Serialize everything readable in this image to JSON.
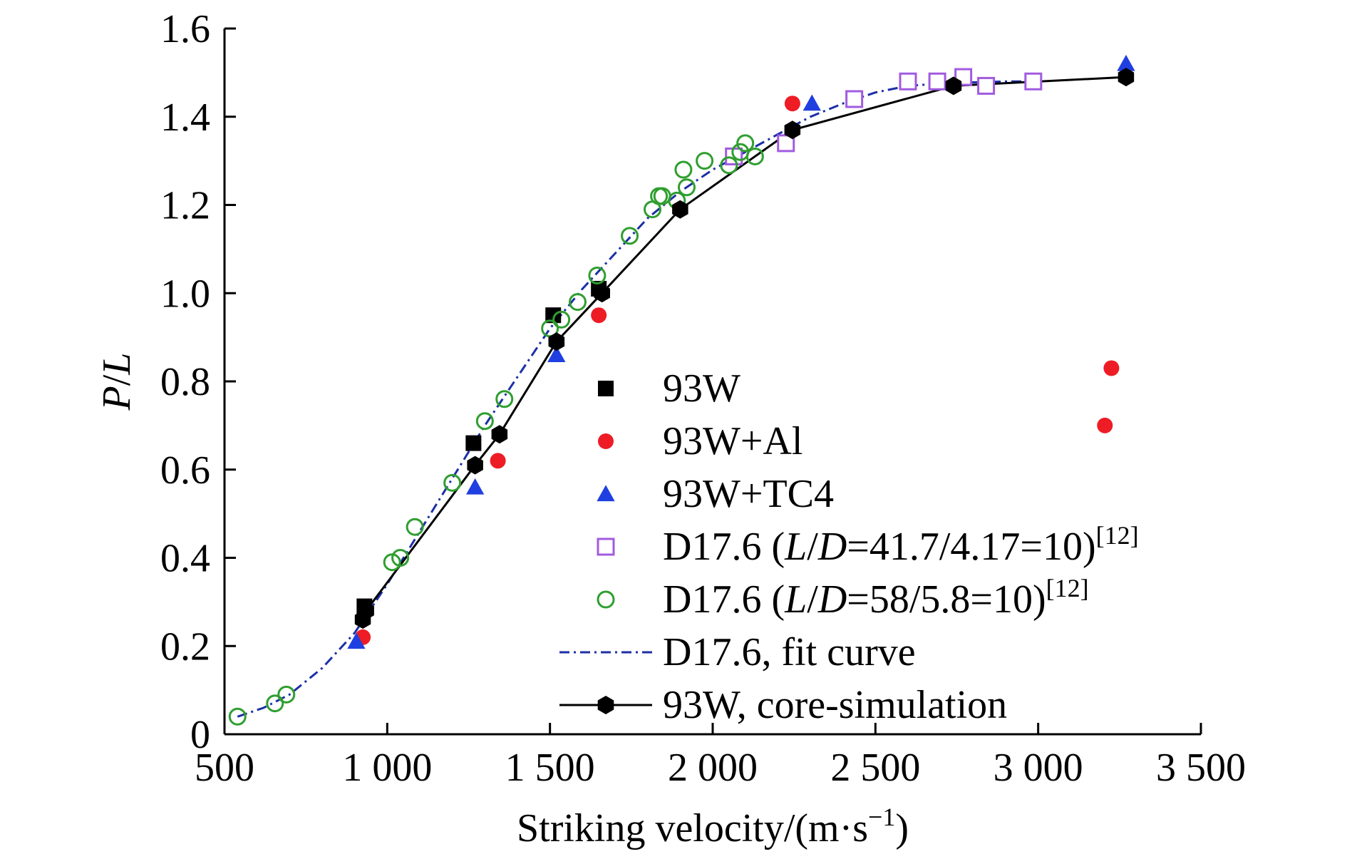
{
  "chart_data": {
    "type": "scatter",
    "xlabel": "Striking velocity/(m·s",
    "xlabel_sup": "−1",
    "xlabel_close": ")",
    "ylabel_p": "P",
    "ylabel_slash": "/",
    "ylabel_l": "L",
    "xlim": [
      500,
      3500
    ],
    "ylim": [
      0,
      1.6
    ],
    "xticks": [
      500,
      1000,
      1500,
      2000,
      2500,
      3000,
      3500
    ],
    "xtick_labels": [
      "500",
      "1 000",
      "1 500",
      "2 000",
      "2 500",
      "3 000",
      "3 500"
    ],
    "yticks": [
      0,
      0.2,
      0.4,
      0.6,
      0.8,
      1.0,
      1.2,
      1.4,
      1.6
    ],
    "ytick_labels": [
      "0",
      "0.2",
      "0.4",
      "0.6",
      "0.8",
      "1.0",
      "1.2",
      "1.4",
      "1.6"
    ],
    "grid": false,
    "legend_position": "center-right",
    "series": [
      {
        "name": "93W",
        "marker": "square",
        "filled": true,
        "color": "#000000",
        "points": [
          [
            930,
            0.29
          ],
          [
            1265,
            0.66
          ],
          [
            1510,
            0.95
          ],
          [
            1650,
            1.01
          ]
        ]
      },
      {
        "name": "93W+Al",
        "marker": "circle",
        "filled": true,
        "color": "#ee1c25",
        "points": [
          [
            925,
            0.22
          ],
          [
            1340,
            0.62
          ],
          [
            1650,
            0.95
          ],
          [
            2245,
            1.43
          ],
          [
            3205,
            0.7
          ],
          [
            3225,
            0.83
          ]
        ]
      },
      {
        "name": "93W+TC4",
        "marker": "triangle",
        "filled": true,
        "color": "#1f3fe0",
        "points": [
          [
            905,
            0.21
          ],
          [
            1270,
            0.56
          ],
          [
            1520,
            0.86
          ],
          [
            2305,
            1.43
          ],
          [
            3270,
            1.52
          ]
        ]
      },
      {
        "name_pre": "D17.6 (",
        "name_it1": "L",
        "name_mid": "/",
        "name_it2": "D",
        "name_post": "=41.7/4.17=10)",
        "name_sup": "[12]",
        "marker": "square",
        "filled": false,
        "color": "#a15be0",
        "points": [
          [
            2065,
            1.31
          ],
          [
            2225,
            1.34
          ],
          [
            2435,
            1.44
          ],
          [
            2600,
            1.48
          ],
          [
            2690,
            1.48
          ],
          [
            2770,
            1.49
          ],
          [
            2840,
            1.47
          ],
          [
            2985,
            1.48
          ]
        ]
      },
      {
        "name_pre": "D17.6 (",
        "name_it1": "L",
        "name_mid": "/",
        "name_it2": "D",
        "name_post": "=58/5.8=10)",
        "name_sup": "[12]",
        "marker": "circle",
        "filled": false,
        "color": "#2f9e2f",
        "points": [
          [
            540,
            0.04
          ],
          [
            655,
            0.07
          ],
          [
            690,
            0.09
          ],
          [
            1015,
            0.39
          ],
          [
            1040,
            0.4
          ],
          [
            1085,
            0.47
          ],
          [
            1200,
            0.57
          ],
          [
            1300,
            0.71
          ],
          [
            1360,
            0.76
          ],
          [
            1500,
            0.92
          ],
          [
            1535,
            0.94
          ],
          [
            1585,
            0.98
          ],
          [
            1645,
            1.04
          ],
          [
            1745,
            1.13
          ],
          [
            1815,
            1.19
          ],
          [
            1835,
            1.22
          ],
          [
            1845,
            1.22
          ],
          [
            1890,
            1.21
          ],
          [
            1910,
            1.28
          ],
          [
            1920,
            1.24
          ],
          [
            1975,
            1.3
          ],
          [
            2050,
            1.29
          ],
          [
            2085,
            1.32
          ],
          [
            2100,
            1.34
          ],
          [
            2130,
            1.31
          ]
        ]
      },
      {
        "name": "D17.6, fit curve",
        "marker": "none",
        "style": "dash-dot",
        "color": "#1c2fa6",
        "points": [
          [
            540,
            0.04
          ],
          [
            620,
            0.06
          ],
          [
            700,
            0.09
          ],
          [
            800,
            0.15
          ],
          [
            900,
            0.23
          ],
          [
            1000,
            0.34
          ],
          [
            1100,
            0.46
          ],
          [
            1200,
            0.58
          ],
          [
            1300,
            0.7
          ],
          [
            1400,
            0.81
          ],
          [
            1500,
            0.92
          ],
          [
            1600,
            1.01
          ],
          [
            1700,
            1.09
          ],
          [
            1800,
            1.17
          ],
          [
            1900,
            1.23
          ],
          [
            2000,
            1.28
          ],
          [
            2100,
            1.32
          ],
          [
            2200,
            1.36
          ],
          [
            2300,
            1.4
          ],
          [
            2400,
            1.43
          ],
          [
            2500,
            1.455
          ],
          [
            2600,
            1.47
          ],
          [
            2700,
            1.475
          ],
          [
            2800,
            1.478
          ],
          [
            2900,
            1.48
          ],
          [
            3000,
            1.48
          ]
        ]
      },
      {
        "name": "93W, core-simulation",
        "marker": "hexagon",
        "filled": true,
        "style": "solid",
        "color": "#000000",
        "points": [
          [
            925,
            0.26
          ],
          [
            935,
            0.28
          ],
          [
            1270,
            0.61
          ],
          [
            1345,
            0.68
          ],
          [
            1520,
            0.89
          ],
          [
            1660,
            1.0
          ],
          [
            1900,
            1.19
          ],
          [
            2245,
            1.37
          ],
          [
            2740,
            1.47
          ],
          [
            3270,
            1.49
          ]
        ]
      }
    ]
  }
}
